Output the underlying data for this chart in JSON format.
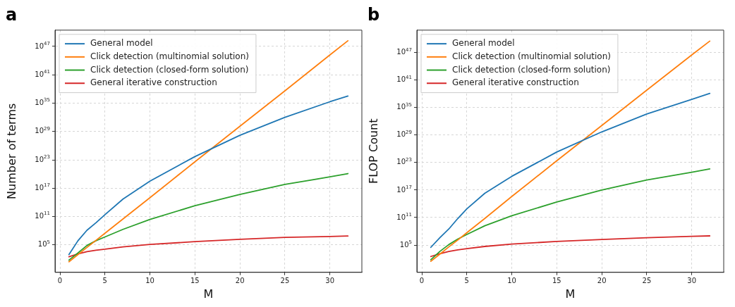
{
  "chart_data": [
    {
      "type": "line",
      "title": "a",
      "xlabel": "M",
      "ylabel": "Number of terms",
      "log": "y",
      "grid": true,
      "legend": "top left",
      "marker": "none",
      "line_style": "solid",
      "xlim": [
        -0.55,
        33.55
      ],
      "xticks": [
        0,
        5,
        10,
        15,
        20,
        25,
        30
      ],
      "ylim": [
        0.16,
        2.8e+50
      ],
      "yticks": [
        {
          "value": 100000.0,
          "label": "10$^{5}$"
        },
        {
          "value": 100000000000.0,
          "label": "10$^{11}$"
        },
        {
          "value": 1e+17,
          "label": "10$^{17}$"
        },
        {
          "value": 1e+23,
          "label": "10$^{23}$"
        },
        {
          "value": 1e+29,
          "label": "10$^{29}$"
        },
        {
          "value": 1e+35,
          "label": "10$^{35}$"
        },
        {
          "value": 1e+41,
          "label": "10$^{41}$"
        },
        {
          "value": 1e+47,
          "label": "10$^{47}$"
        }
      ],
      "x": [
        1,
        2,
        3,
        4,
        5,
        7,
        10,
        15,
        20,
        25,
        30,
        32
      ],
      "series": [
        {
          "name": "General model",
          "color": "#1f77b4",
          "values": [
            910.0,
            790000.0,
            130000000.0,
            5000000000.0,
            250000000000.0,
            500000000000000.0,
            3.2e+18,
            5e+23,
            1.6e+28,
            1e+32,
            2e+35,
            3.2e+36
          ]
        },
        {
          "name": "Click detection (multinomial solution)",
          "color": "#ff7f0e",
          "values": [
            28.0,
            910.0,
            30000.0,
            930000.0,
            30000000.0,
            32000000000.0,
            1000000000000000.0,
            4e+22,
            1.3e+30,
            4e+37,
            1.6e+45,
            1.6e+48
          ]
        },
        {
          "name": "Click detection (closed-form solution)",
          "color": "#2ca02c",
          "values": [
            63.0,
            2000.0,
            79000.0,
            790000.0,
            5000000.0,
            200000000.0,
            25000000000.0,
            20000000000000.0,
            5000000000000000.0,
            6.3e+17,
            2.5e+19,
            1.26e+20
          ]
        },
        {
          "name": "General iterative construction",
          "color": "#d62728",
          "values": [
            320.0,
            1260.0,
            4000.0,
            7900.0,
            12600.0,
            40000.0,
            126000.0,
            500000.0,
            1600000.0,
            4000000.0,
            6300000.0,
            7900000.0
          ]
        }
      ]
    },
    {
      "type": "line",
      "title": "b",
      "xlabel": "M",
      "ylabel": "FLOP Count",
      "log": "y",
      "grid": true,
      "legend": "top left",
      "marker": "none",
      "line_style": "solid",
      "xlim": [
        -0.55,
        33.55
      ],
      "xticks": [
        0,
        5,
        10,
        15,
        20,
        25,
        30
      ],
      "ylim": [
        0.11,
        8e+51
      ],
      "yticks": [
        {
          "value": 100000.0,
          "label": "10$^{5}$"
        },
        {
          "value": 100000000000.0,
          "label": "10$^{11}$"
        },
        {
          "value": 1e+17,
          "label": "10$^{17}$"
        },
        {
          "value": 1e+23,
          "label": "10$^{23}$"
        },
        {
          "value": 1e+29,
          "label": "10$^{29}$"
        },
        {
          "value": 1e+35,
          "label": "10$^{35}$"
        },
        {
          "value": 1e+41,
          "label": "10$^{41}$"
        },
        {
          "value": 1e+47,
          "label": "10$^{47}$"
        }
      ],
      "x": [
        1,
        2,
        3,
        4,
        5,
        7,
        10,
        15,
        20,
        25,
        30,
        32
      ],
      "series": [
        {
          "name": "General model",
          "color": "#1f77b4",
          "values": [
            32000.0,
            4000000.0,
            320000000.0,
            63000000000.0,
            7900000000000.0,
            2e+16,
            1e+20,
            2e+25,
            5e+29,
            4e+33,
            6.3e+36,
            1.26e+38
          ]
        },
        {
          "name": "Click detection (multinomial solution)",
          "color": "#ff7f0e",
          "values": [
            28.0,
            1000.0,
            40000.0,
            1260000.0,
            50000000.0,
            63000000000.0,
            4000000000000000.0,
            2.5e+23,
            1.26e+31,
            6.3e+38,
            3.2e+46,
            3.2e+49
          ]
        },
        {
          "name": "Click detection (closed-form solution)",
          "color": "#2ca02c",
          "values": [
            63.0,
            4000.0,
            126000.0,
            2000000.0,
            20000000.0,
            1600000000.0,
            250000000000.0,
            250000000000000.0,
            1e+17,
            1.6e+19,
            7.9e+20,
            4e+21
          ]
        },
        {
          "name": "General iterative construction",
          "color": "#d62728",
          "values": [
            320.0,
            1260.0,
            4000.0,
            8900.0,
            16000.0,
            50000.0,
            160000.0,
            630000.0,
            1600000.0,
            4000000.0,
            7900000.0,
            10000000.0
          ]
        }
      ]
    }
  ]
}
